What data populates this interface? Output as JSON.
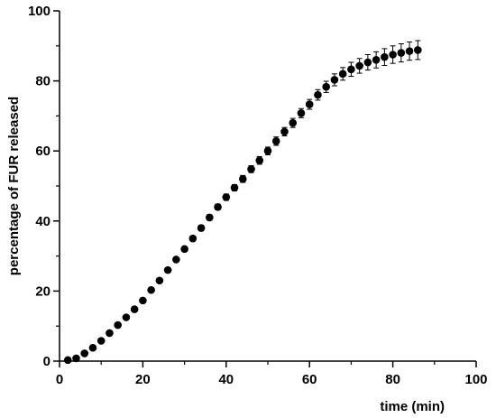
{
  "chart_data": {
    "type": "scatter",
    "title": "",
    "xlabel": "time (min)",
    "ylabel": "percentage of FUR released",
    "xlim": [
      0,
      100
    ],
    "ylim": [
      0,
      100
    ],
    "x_ticks": [
      0,
      20,
      40,
      60,
      80,
      100
    ],
    "y_ticks": [
      0,
      20,
      40,
      60,
      80,
      100
    ],
    "grid": false,
    "legend": "none",
    "marker_color": "#000000",
    "series": [
      {
        "x": [
          2,
          4,
          6,
          8,
          10,
          12,
          14,
          16,
          18,
          20,
          22,
          24,
          26,
          28,
          30,
          32,
          34,
          36,
          38,
          40,
          42,
          44,
          46,
          48,
          50,
          52,
          54,
          56,
          58,
          60,
          62,
          64,
          66,
          68,
          70,
          72,
          74,
          76,
          78,
          80,
          82,
          84,
          86
        ],
        "y": [
          0.3,
          0.8,
          2.2,
          3.8,
          5.8,
          8.0,
          10.3,
          12.5,
          14.8,
          17.3,
          20.3,
          23.0,
          26.0,
          29.0,
          32.0,
          35.0,
          38.0,
          41.0,
          44.0,
          46.8,
          49.5,
          52.0,
          54.8,
          57.3,
          60.0,
          62.8,
          65.5,
          68.0,
          70.8,
          73.3,
          76.0,
          78.3,
          80.3,
          82.0,
          83.3,
          84.3,
          85.3,
          86.0,
          86.8,
          87.5,
          88.0,
          88.5,
          88.8
        ],
        "error": [
          0.3,
          0.3,
          0.4,
          0.4,
          0.5,
          0.5,
          0.5,
          0.5,
          0.5,
          0.5,
          0.6,
          0.6,
          0.6,
          0.6,
          0.7,
          0.7,
          0.8,
          0.8,
          0.8,
          0.9,
          0.9,
          1.0,
          1.0,
          1.1,
          1.1,
          1.2,
          1.2,
          1.3,
          1.3,
          1.4,
          1.5,
          1.6,
          1.7,
          1.8,
          2.0,
          2.1,
          2.2,
          2.3,
          2.4,
          2.5,
          2.6,
          2.6,
          2.7
        ]
      }
    ]
  }
}
